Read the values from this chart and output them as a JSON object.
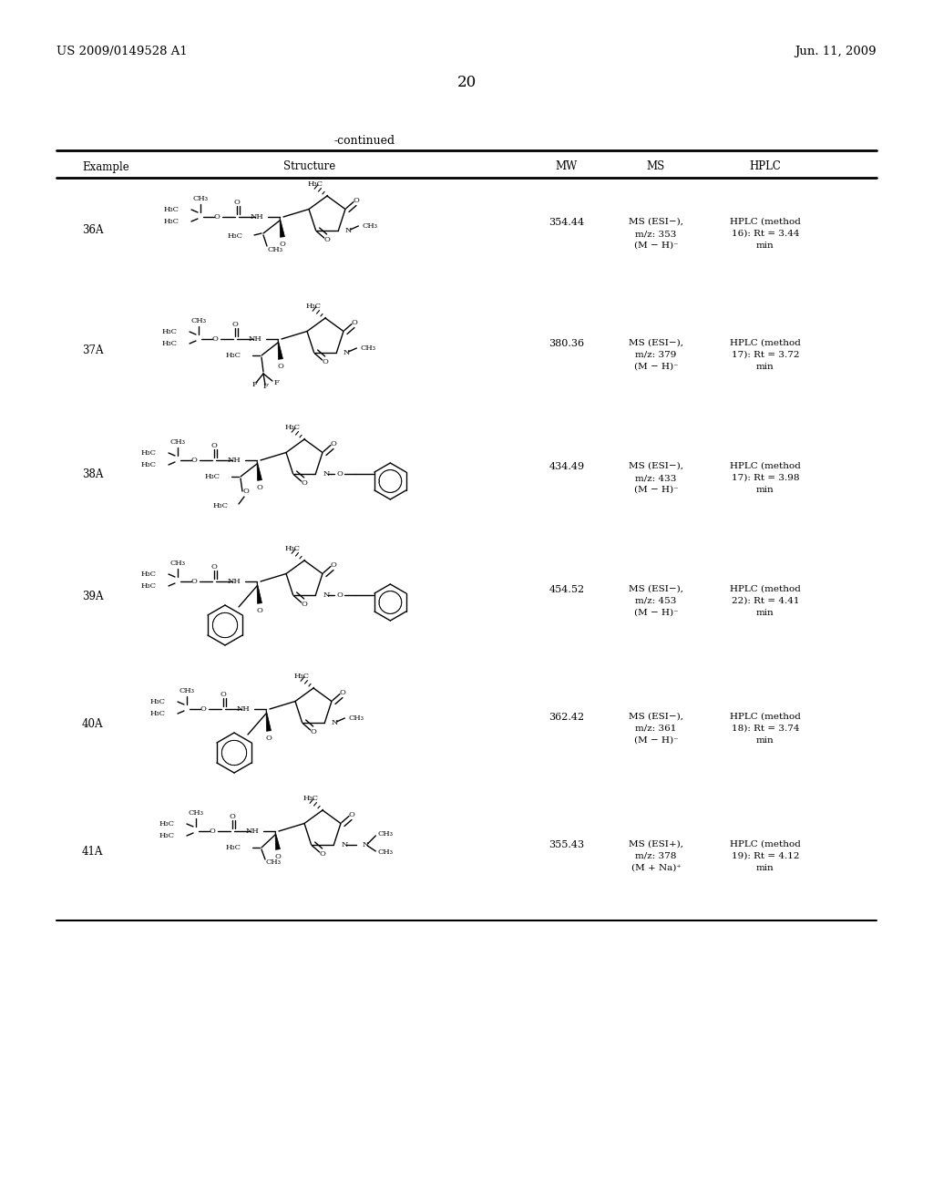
{
  "header_left": "US 2009/0149528 A1",
  "header_right": "Jun. 11, 2009",
  "page_number": "20",
  "continued_text": "-continued",
  "col_example": "Example",
  "col_structure": "Structure",
  "col_mw": "MW",
  "col_ms": "MS",
  "col_hplc": "HPLC",
  "rows": [
    {
      "example": "36A",
      "mw": "354.44",
      "ms": "MS (ESI−),\nm/z: 353\n(M − H)⁻",
      "hplc": "HPLC (method\n16): Rt = 3.44\nmin"
    },
    {
      "example": "37A",
      "mw": "380.36",
      "ms": "MS (ESI−),\nm/z: 379\n(M − H)⁻",
      "hplc": "HPLC (method\n17): Rt = 3.72\nmin"
    },
    {
      "example": "38A",
      "mw": "434.49",
      "ms": "MS (ESI−),\nm/z: 433\n(M − H)⁻",
      "hplc": "HPLC (method\n17): Rt = 3.98\nmin"
    },
    {
      "example": "39A",
      "mw": "454.52",
      "ms": "MS (ESI−),\nm/z: 453\n(M − H)⁻",
      "hplc": "HPLC (method\n22): Rt = 4.41\nmin"
    },
    {
      "example": "40A",
      "mw": "362.42",
      "ms": "MS (ESI−),\nm/z: 361\n(M − H)⁻",
      "hplc": "HPLC (method\n18): Rt = 3.74\nmin"
    },
    {
      "example": "41A",
      "mw": "355.43",
      "ms": "MS (ESI+),\nm/z: 378\n(M + Na)⁺",
      "hplc": "HPLC (method\n19): Rt = 4.12\nmin"
    }
  ],
  "row_centers_y": [
    257,
    390,
    525,
    660,
    800,
    940
  ],
  "bg_color": "#ffffff"
}
